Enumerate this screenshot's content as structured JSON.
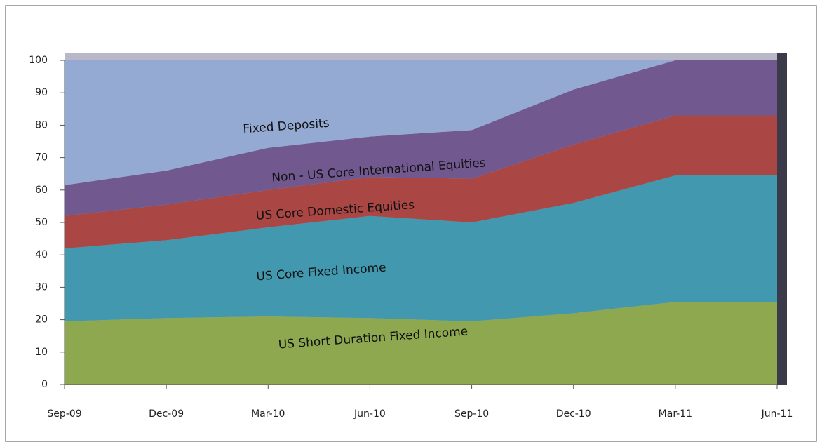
{
  "chart_data": {
    "type": "area",
    "stacked": true,
    "categories": [
      "Sep-09",
      "Dec-09",
      "Mar-10",
      "Jun-10",
      "Sep-10",
      "Dec-10",
      "Mar-11",
      "Jun-11"
    ],
    "series": [
      {
        "name": "US Short Duration Fixed Income",
        "color": "#8ea84f",
        "values": [
          19.5,
          20.5,
          21,
          20.5,
          19.5,
          22,
          25.5,
          25.5
        ]
      },
      {
        "name": "US Core Fixed Income",
        "color": "#4198af",
        "values": [
          22.5,
          24,
          27.5,
          31.5,
          30.5,
          34,
          39,
          39
        ]
      },
      {
        "name": "US Core Domestic Equities",
        "color": "#aa4644",
        "values": [
          10,
          11,
          11.5,
          12,
          13.5,
          18,
          18.5,
          18.5
        ]
      },
      {
        "name": "Non - US Core International Equities",
        "color": "#71588f",
        "values": [
          9.5,
          10.5,
          13,
          12.5,
          15,
          17,
          17,
          17
        ]
      },
      {
        "name": "Fixed Deposits",
        "color": "#95aad2",
        "values": [
          38.5,
          34,
          27,
          23.5,
          21.5,
          9,
          0,
          0
        ]
      }
    ],
    "ylim": [
      0,
      100
    ],
    "yticks": [
      0,
      10,
      20,
      30,
      40,
      50,
      60,
      70,
      80,
      90,
      100
    ],
    "grid": false
  }
}
